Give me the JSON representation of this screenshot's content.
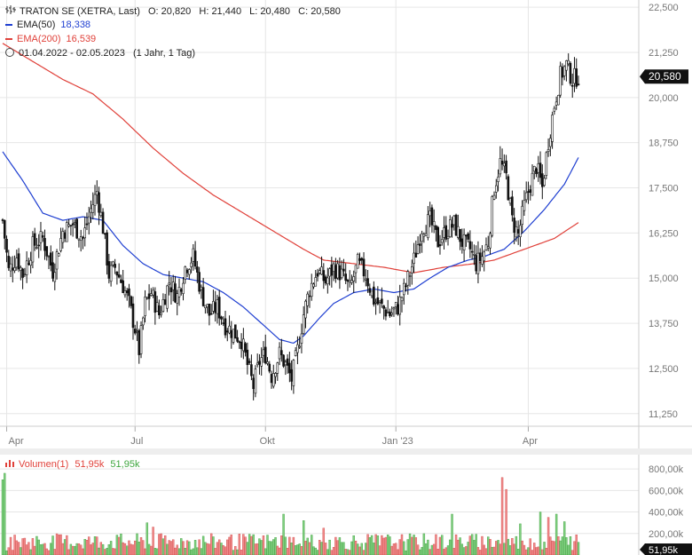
{
  "header": {
    "instrument": "TRATON SE (XETRA, Last)",
    "ohlc": {
      "o_label": "O:",
      "o": "20,820",
      "h_label": "H:",
      "h": "21,440",
      "l_label": "L:",
      "l": "20,480",
      "c_label": "C:",
      "c": "20,580"
    },
    "ema50": {
      "label": "EMA(50)",
      "value": "18,338"
    },
    "ema200": {
      "label": "EMA(200)",
      "value": "16,539"
    },
    "range": {
      "dates": "01.04.2022 - 02.05.2023",
      "period": "(1 Jahr, 1 Tag)"
    }
  },
  "volume_legend": {
    "label": "Volumen(1)",
    "value_red": "51,95k",
    "value_green": "51,95k"
  },
  "colors": {
    "ema50": "#1f3fd1",
    "ema200": "#e0413a",
    "candle": "#111111",
    "vol_up": "#7fcf7f",
    "vol_down": "#f08a8a",
    "grid": "#e6e6e6",
    "axis_text": "#777777"
  },
  "chart_data": [
    {
      "type": "candlestick",
      "title": "TRATON SE (XETRA, Last)",
      "x_tick_labels": [
        "Apr",
        "Jul",
        "Okt",
        "Jan '23",
        "Apr"
      ],
      "y_ticks": [
        11.25,
        12.5,
        13.75,
        15.0,
        16.25,
        17.5,
        18.75,
        20.0,
        21.25,
        22.5
      ],
      "y_tick_labels": [
        "11,250",
        "12,500",
        "13,750",
        "15,000",
        "16,250",
        "17,500",
        "18,750",
        "20,000",
        "21,250",
        "22,500"
      ],
      "ylim": [
        10.9,
        22.7
      ],
      "last_price": 20.58,
      "last_price_label": "20,580",
      "grid": true,
      "price_path": [
        [
          0,
          16.6
        ],
        [
          3,
          15.2
        ],
        [
          7,
          15.6
        ],
        [
          10,
          15.1
        ],
        [
          15,
          15.9
        ],
        [
          20,
          16.1
        ],
        [
          25,
          15.2
        ],
        [
          30,
          16.3
        ],
        [
          35,
          16.5
        ],
        [
          40,
          16.1
        ],
        [
          44,
          16.9
        ],
        [
          47,
          17.4
        ],
        [
          50,
          16.4
        ],
        [
          53,
          15.1
        ],
        [
          56,
          15.3
        ],
        [
          60,
          14.8
        ],
        [
          63,
          14.3
        ],
        [
          66,
          13.6
        ],
        [
          68,
          13.0
        ],
        [
          71,
          14.3
        ],
        [
          74,
          14.6
        ],
        [
          78,
          14.0
        ],
        [
          83,
          14.9
        ],
        [
          87,
          14.5
        ],
        [
          91,
          15.3
        ],
        [
          95,
          15.6
        ],
        [
          99,
          14.6
        ],
        [
          103,
          14.0
        ],
        [
          107,
          14.2
        ],
        [
          111,
          13.7
        ],
        [
          115,
          13.5
        ],
        [
          119,
          13.3
        ],
        [
          122,
          12.6
        ],
        [
          125,
          12.0
        ],
        [
          128,
          12.7
        ],
        [
          131,
          12.9
        ],
        [
          134,
          12.3
        ],
        [
          138,
          12.9
        ],
        [
          141,
          12.6
        ],
        [
          144,
          12.2
        ],
        [
          147,
          13.0
        ],
        [
          150,
          14.0
        ],
        [
          153,
          14.7
        ],
        [
          157,
          15.2
        ],
        [
          161,
          14.9
        ],
        [
          165,
          15.3
        ],
        [
          169,
          15.1
        ],
        [
          173,
          14.7
        ],
        [
          177,
          15.4
        ],
        [
          181,
          15.1
        ],
        [
          185,
          14.4
        ],
        [
          189,
          14.2
        ],
        [
          193,
          14.0
        ],
        [
          197,
          14.2
        ],
        [
          201,
          14.8
        ],
        [
          205,
          15.5
        ],
        [
          209,
          16.4
        ],
        [
          213,
          16.6
        ],
        [
          217,
          16.0
        ],
        [
          221,
          16.3
        ],
        [
          225,
          16.5
        ],
        [
          229,
          16.0
        ],
        [
          233,
          15.8
        ],
        [
          236,
          15.4
        ],
        [
          239,
          15.6
        ],
        [
          242,
          16.0
        ],
        [
          245,
          17.5
        ],
        [
          248,
          18.2
        ],
        [
          251,
          17.8
        ],
        [
          254,
          16.6
        ],
        [
          257,
          16.2
        ],
        [
          260,
          17.0
        ],
        [
          263,
          17.6
        ],
        [
          266,
          18.1
        ],
        [
          269,
          17.5
        ],
        [
          272,
          18.8
        ],
        [
          275,
          19.8
        ],
        [
          278,
          20.6
        ],
        [
          281,
          20.9
        ],
        [
          284,
          20.5
        ],
        [
          287,
          20.6
        ]
      ],
      "ema50_path": [
        [
          0,
          18.5
        ],
        [
          10,
          17.7
        ],
        [
          20,
          16.8
        ],
        [
          30,
          16.6
        ],
        [
          40,
          16.7
        ],
        [
          50,
          16.6
        ],
        [
          60,
          15.9
        ],
        [
          70,
          15.4
        ],
        [
          80,
          15.1
        ],
        [
          90,
          15.0
        ],
        [
          100,
          14.9
        ],
        [
          110,
          14.6
        ],
        [
          120,
          14.2
        ],
        [
          130,
          13.7
        ],
        [
          138,
          13.3
        ],
        [
          145,
          13.2
        ],
        [
          150,
          13.4
        ],
        [
          158,
          13.9
        ],
        [
          165,
          14.3
        ],
        [
          175,
          14.6
        ],
        [
          185,
          14.7
        ],
        [
          195,
          14.6
        ],
        [
          205,
          14.7
        ],
        [
          213,
          15.0
        ],
        [
          222,
          15.3
        ],
        [
          232,
          15.5
        ],
        [
          240,
          15.6
        ],
        [
          250,
          15.8
        ],
        [
          260,
          16.3
        ],
        [
          270,
          16.9
        ],
        [
          280,
          17.6
        ],
        [
          287,
          18.34
        ]
      ],
      "ema200_path": [
        [
          0,
          21.5
        ],
        [
          15,
          21.0
        ],
        [
          30,
          20.5
        ],
        [
          45,
          20.1
        ],
        [
          60,
          19.4
        ],
        [
          75,
          18.6
        ],
        [
          90,
          17.9
        ],
        [
          105,
          17.3
        ],
        [
          120,
          16.8
        ],
        [
          135,
          16.3
        ],
        [
          150,
          15.8
        ],
        [
          160,
          15.5
        ],
        [
          175,
          15.4
        ],
        [
          190,
          15.3
        ],
        [
          205,
          15.15
        ],
        [
          220,
          15.3
        ],
        [
          235,
          15.4
        ],
        [
          245,
          15.5
        ],
        [
          255,
          15.7
        ],
        [
          265,
          15.9
        ],
        [
          275,
          16.1
        ],
        [
          287,
          16.54
        ]
      ]
    },
    {
      "type": "bar",
      "title": "Volumen(1)",
      "y_tick_labels": [
        "200,00k",
        "400,00k",
        "600,00k",
        "800,00k"
      ],
      "y_ticks": [
        200,
        400,
        600,
        800
      ],
      "ylim": [
        0,
        900
      ],
      "last_value_label": "51,95k",
      "spikes": [
        [
          0,
          700
        ],
        [
          1,
          760
        ],
        [
          72,
          300
        ],
        [
          75,
          260
        ],
        [
          140,
          380
        ],
        [
          150,
          320
        ],
        [
          160,
          250
        ],
        [
          224,
          380
        ],
        [
          249,
          720
        ],
        [
          251,
          610
        ],
        [
          258,
          290
        ],
        [
          268,
          400
        ],
        [
          272,
          350
        ],
        [
          276,
          380
        ],
        [
          280,
          310
        ]
      ]
    }
  ]
}
